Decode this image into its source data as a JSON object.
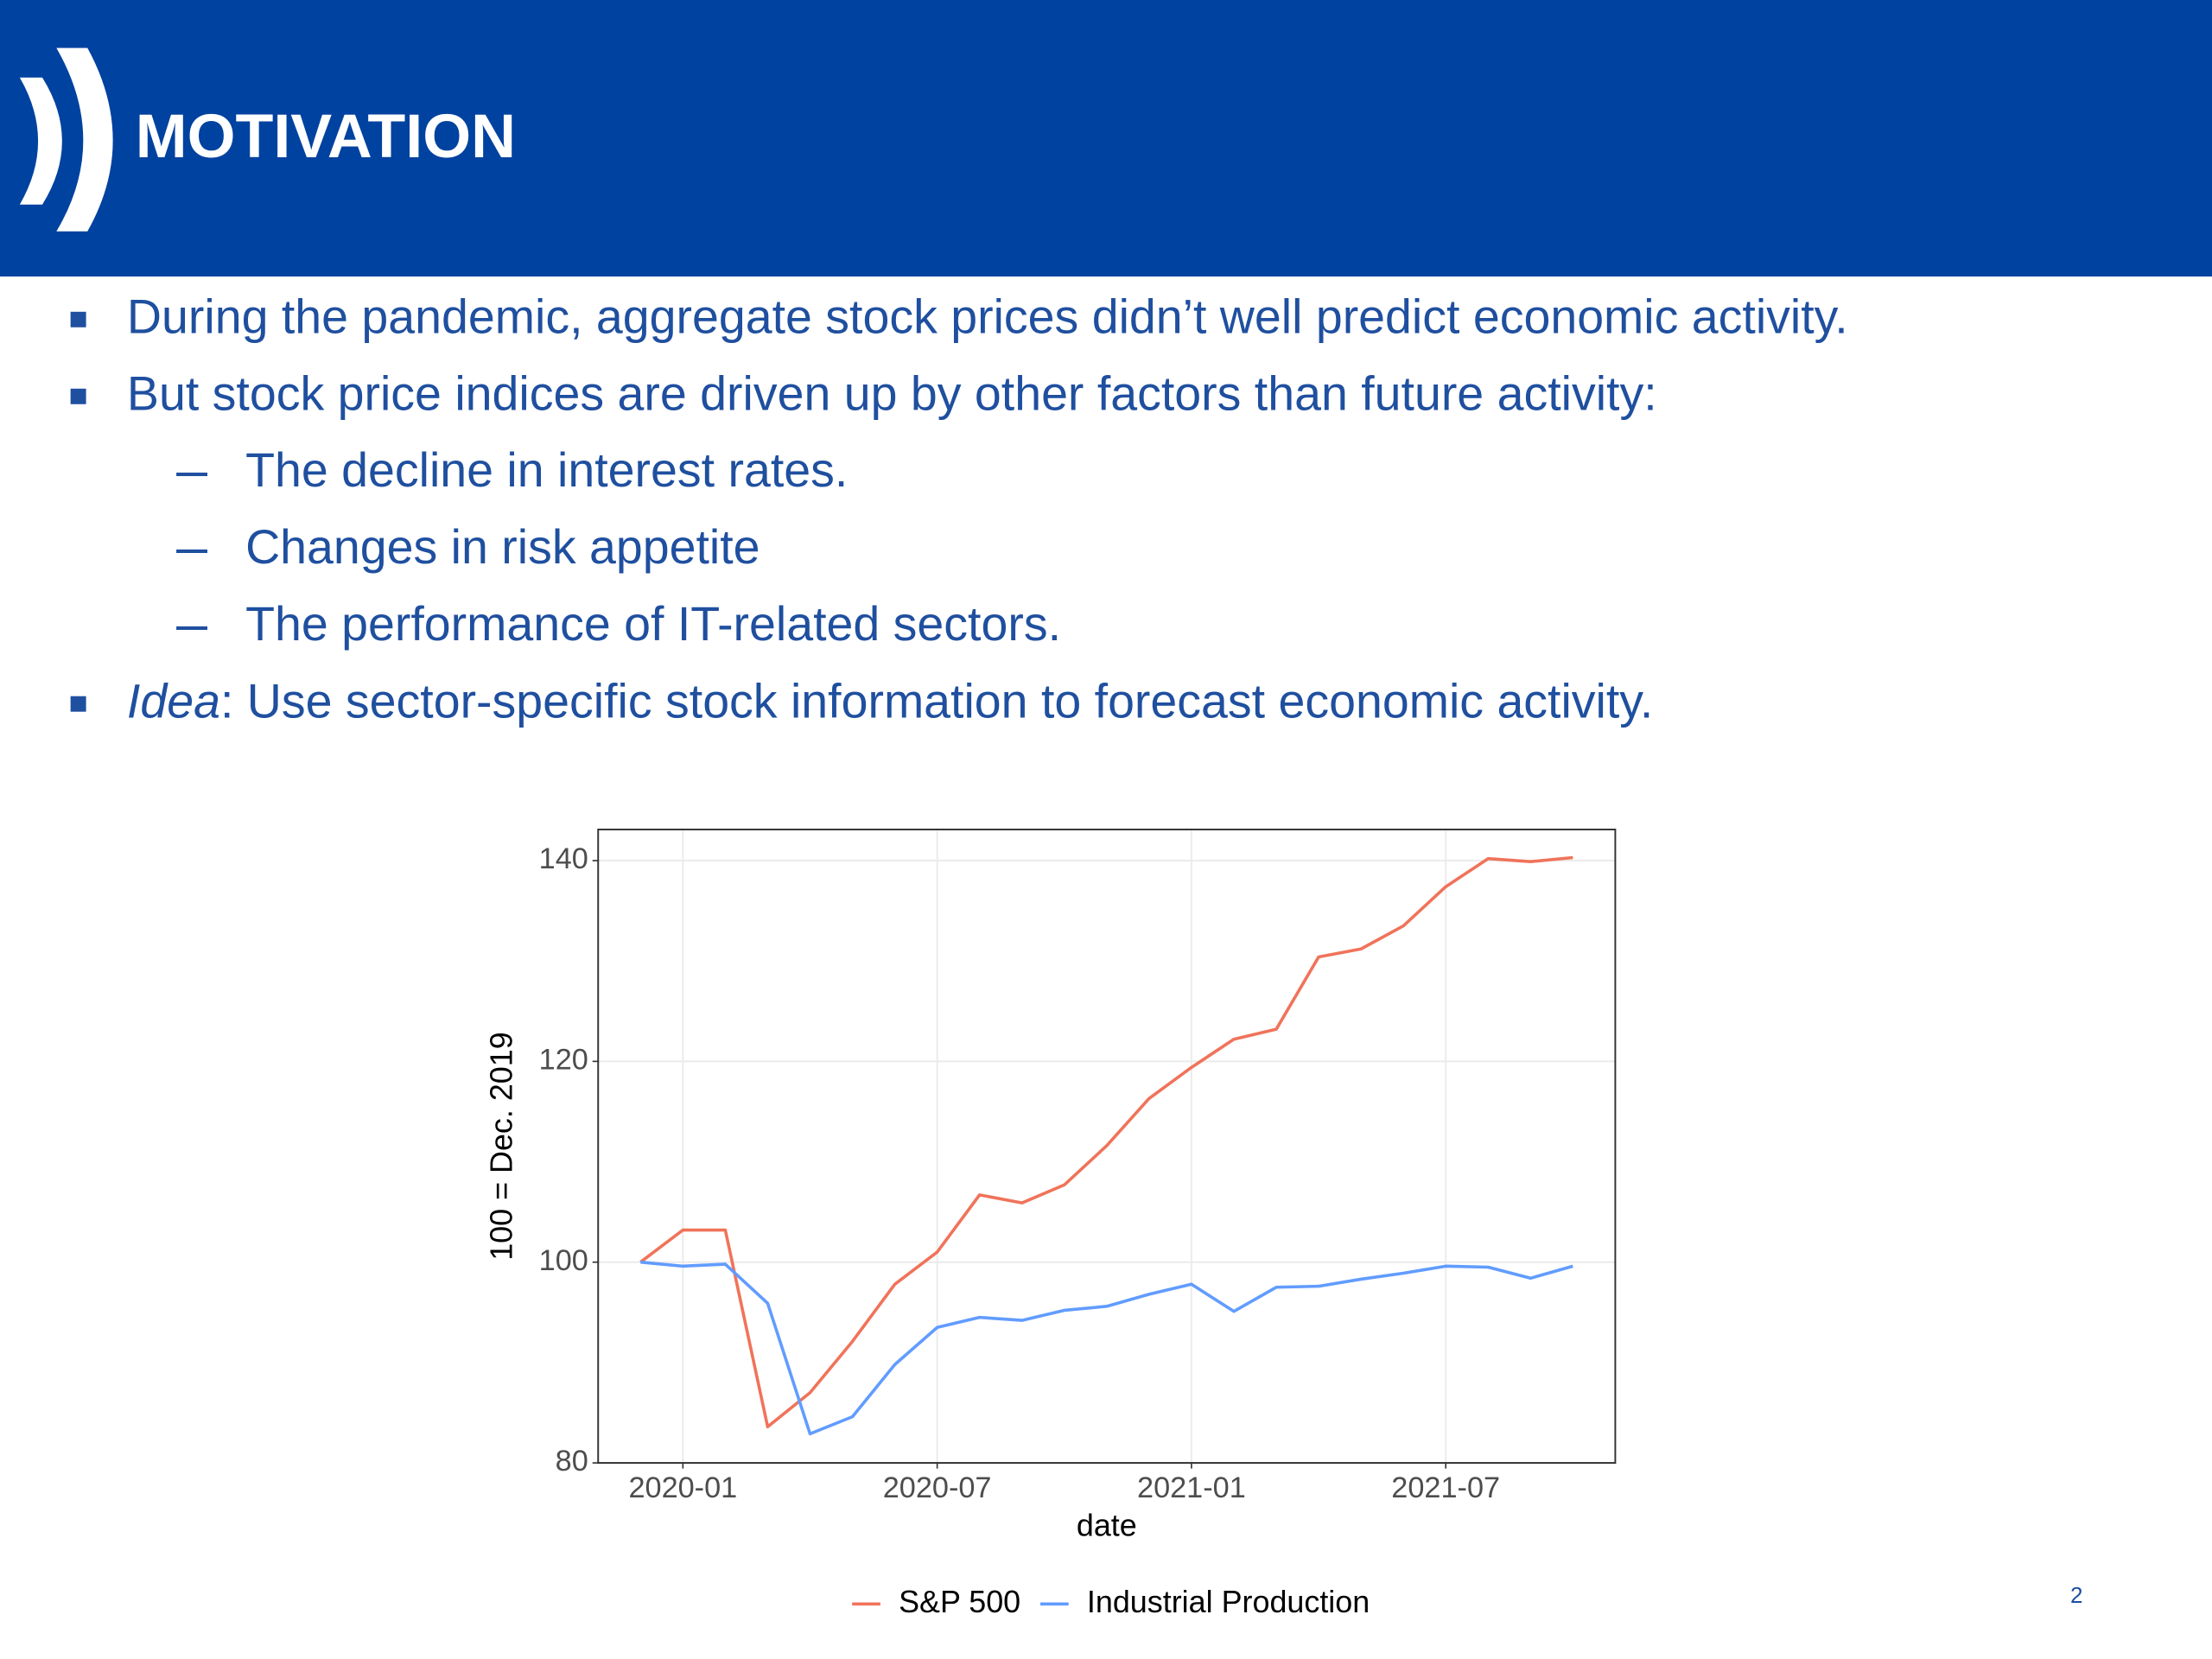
{
  "header": {
    "title": "MOTIVATION"
  },
  "bullets": [
    {
      "text": "During the pandemic, aggregate stock prices didn’t well predict economic activity."
    },
    {
      "text": "But stock price indices are driven up by other factors than future activity:",
      "subitems": [
        "The decline in interest rates.",
        "Changes in risk appetite",
        "The performance of IT-related sectors."
      ]
    },
    {
      "emphasis": "Idea",
      "text": ": Use sector-specific stock information to forecast economic activity."
    }
  ],
  "page_number": "2",
  "chart_data": {
    "type": "line",
    "x_label": "date",
    "y_label": "100 = Dec. 2019",
    "x": [
      "2019-12",
      "2020-01",
      "2020-02",
      "2020-03",
      "2020-04",
      "2020-05",
      "2020-06",
      "2020-07",
      "2020-08",
      "2020-09",
      "2020-10",
      "2020-11",
      "2020-12",
      "2021-01",
      "2021-02",
      "2021-03",
      "2021-04",
      "2021-05",
      "2021-06",
      "2021-07",
      "2021-08",
      "2021-09",
      "2021-10"
    ],
    "series": [
      {
        "name": "S&P 500",
        "color": "#f0735a",
        "values": [
          100,
          103.2,
          103.2,
          83.6,
          87.0,
          92.1,
          97.8,
          101.0,
          106.7,
          105.9,
          107.7,
          111.6,
          116.3,
          119.4,
          122.2,
          123.2,
          130.4,
          131.2,
          133.5,
          137.4,
          140.2,
          139.9,
          140.3
        ]
      },
      {
        "name": "Industrial Production",
        "color": "#619cff",
        "values": [
          100,
          99.6,
          99.8,
          95.9,
          82.9,
          84.6,
          89.8,
          93.5,
          94.5,
          94.2,
          95.2,
          95.6,
          96.8,
          97.8,
          95.1,
          97.5,
          97.6,
          98.3,
          98.9,
          99.6,
          99.5,
          98.4,
          99.6
        ]
      }
    ],
    "xlim": [
      "2019-11",
      "2021-11"
    ],
    "xticks": [
      "2020-01",
      "2020-07",
      "2021-01",
      "2021-07"
    ],
    "ylim": [
      80,
      143.1
    ],
    "yticks": [
      80,
      100,
      120,
      140
    ],
    "grid": true,
    "legend": "bottom"
  }
}
